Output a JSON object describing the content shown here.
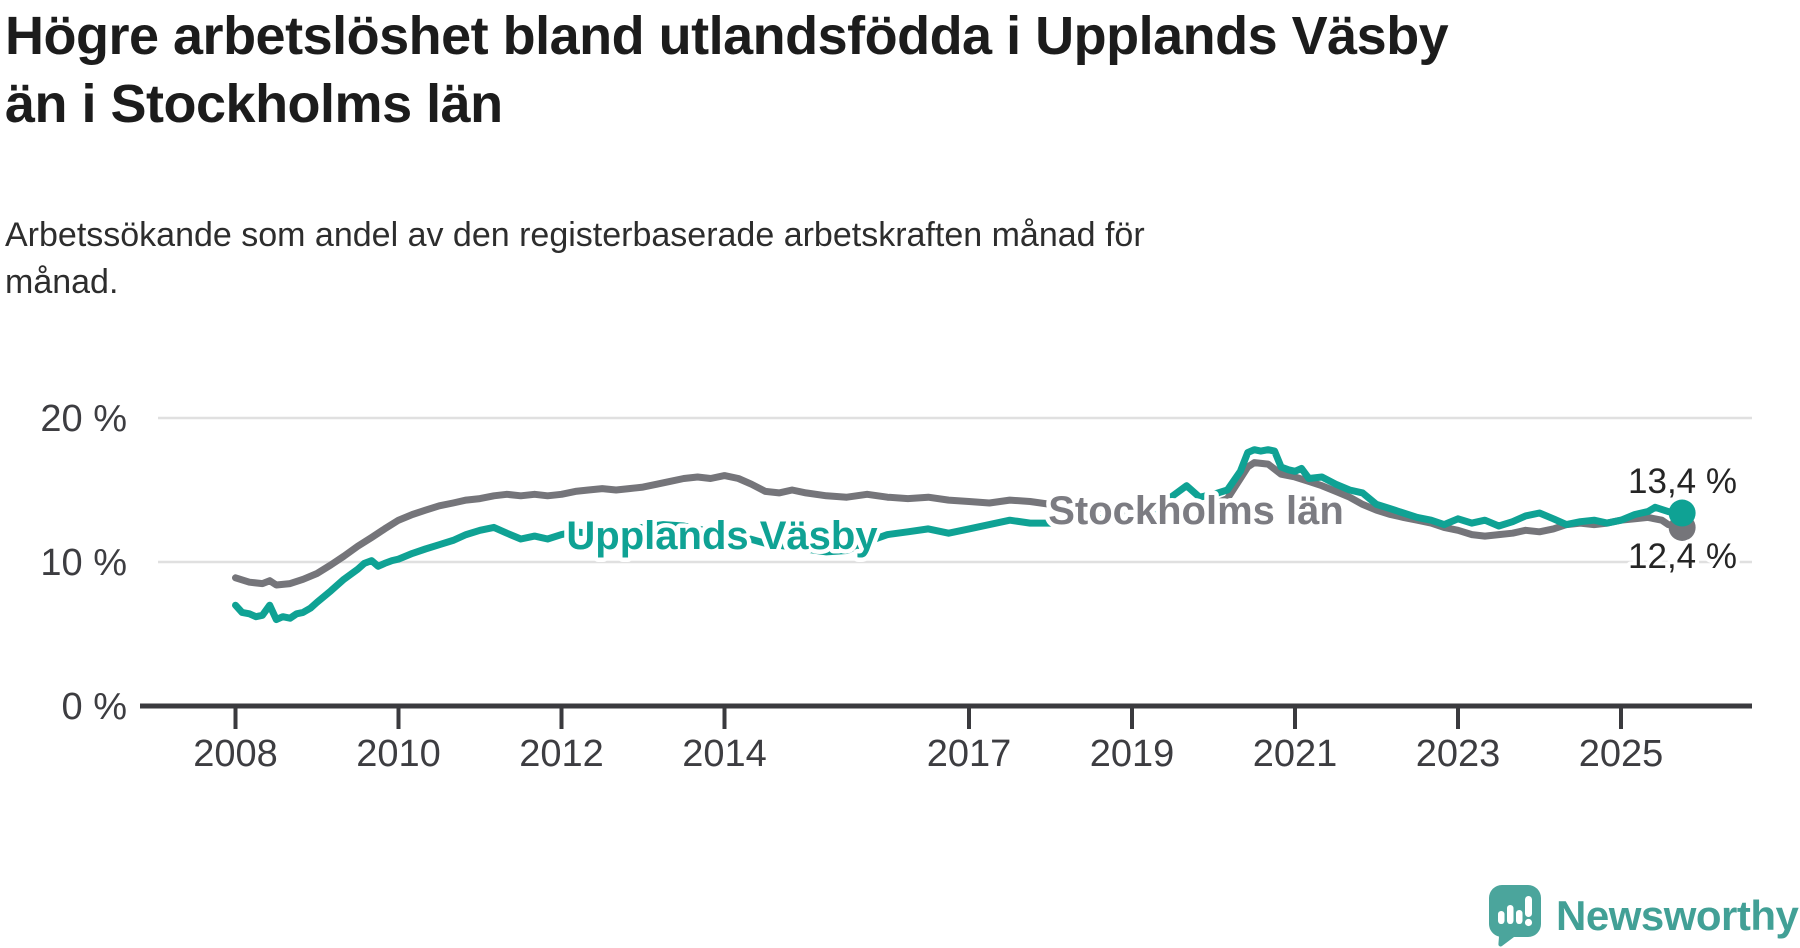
{
  "header": {
    "title_lines": [
      "Högre arbetslöshet bland utlandsfödda i Upplands Väsby",
      "än i Stockholms län"
    ],
    "subtitle_lines": [
      "Arbetssökande som andel av den registerbaserade arbetskraften månad för",
      "månad."
    ]
  },
  "chart_data": {
    "type": "line",
    "title": "Högre arbetslöshet bland utlandsfödda i Upplands Väsby än i Stockholms län",
    "subtitle": "Arbetssökande som andel av den registerbaserade arbetskraften månad för månad.",
    "xlabel": "",
    "ylabel": "",
    "ylim": [
      0,
      20
    ],
    "xlim": [
      2008,
      2026
    ],
    "grid": "horizontal",
    "legend_position": "inline-labels",
    "y_ticks": [
      {
        "value": 20,
        "label": "20 %"
      },
      {
        "value": 10,
        "label": "10 %"
      },
      {
        "value": 0,
        "label": "0 %"
      }
    ],
    "x_ticks": [
      {
        "value": 2008,
        "label": "2008"
      },
      {
        "value": 2010,
        "label": "2010"
      },
      {
        "value": 2012,
        "label": "2012"
      },
      {
        "value": 2014,
        "label": "2014"
      },
      {
        "value": 2017,
        "label": "2017"
      },
      {
        "value": 2019,
        "label": "2019"
      },
      {
        "value": 2021,
        "label": "2021"
      },
      {
        "value": 2023,
        "label": "2023"
      },
      {
        "value": 2025,
        "label": "2025"
      }
    ],
    "series": [
      {
        "name": "Upplands Väsby",
        "color": "#0fa294",
        "end_label": "13,4 %",
        "end_value": 13.4,
        "points": [
          [
            2008.0,
            7.0
          ],
          [
            2008.08,
            6.5
          ],
          [
            2008.17,
            6.4
          ],
          [
            2008.25,
            6.2
          ],
          [
            2008.33,
            6.3
          ],
          [
            2008.42,
            7.0
          ],
          [
            2008.5,
            6.0
          ],
          [
            2008.58,
            6.2
          ],
          [
            2008.67,
            6.1
          ],
          [
            2008.75,
            6.4
          ],
          [
            2008.83,
            6.5
          ],
          [
            2008.92,
            6.8
          ],
          [
            2009.0,
            7.2
          ],
          [
            2009.17,
            8.0
          ],
          [
            2009.33,
            8.8
          ],
          [
            2009.5,
            9.5
          ],
          [
            2009.58,
            9.9
          ],
          [
            2009.67,
            10.1
          ],
          [
            2009.75,
            9.7
          ],
          [
            2009.83,
            9.9
          ],
          [
            2009.92,
            10.1
          ],
          [
            2010.0,
            10.2
          ],
          [
            2010.17,
            10.6
          ],
          [
            2010.33,
            10.9
          ],
          [
            2010.5,
            11.2
          ],
          [
            2010.67,
            11.5
          ],
          [
            2010.83,
            11.9
          ],
          [
            2011.0,
            12.2
          ],
          [
            2011.17,
            12.4
          ],
          [
            2011.33,
            12.0
          ],
          [
            2011.5,
            11.6
          ],
          [
            2011.67,
            11.8
          ],
          [
            2011.83,
            11.6
          ],
          [
            2012.0,
            11.9
          ],
          [
            2012.17,
            12.1
          ],
          [
            2012.33,
            12.0
          ],
          [
            2012.5,
            12.2
          ],
          [
            2012.67,
            12.1
          ],
          [
            2012.83,
            12.3
          ],
          [
            2013.0,
            12.4
          ],
          [
            2013.25,
            12.6
          ],
          [
            2013.5,
            12.5
          ],
          [
            2013.75,
            12.2
          ],
          [
            2014.0,
            12.0
          ],
          [
            2014.25,
            11.7
          ],
          [
            2014.5,
            11.3
          ],
          [
            2014.75,
            11.1
          ],
          [
            2015.0,
            10.9
          ],
          [
            2015.25,
            10.7
          ],
          [
            2015.5,
            10.8
          ],
          [
            2015.75,
            11.4
          ],
          [
            2016.0,
            11.9
          ],
          [
            2016.25,
            12.1
          ],
          [
            2016.5,
            12.3
          ],
          [
            2016.75,
            12.0
          ],
          [
            2017.0,
            12.3
          ],
          [
            2017.25,
            12.6
          ],
          [
            2017.5,
            12.9
          ],
          [
            2017.75,
            12.7
          ],
          [
            2018.0,
            12.7
          ],
          [
            2018.25,
            12.9
          ],
          [
            2018.5,
            13.1
          ],
          [
            2018.75,
            12.9
          ],
          [
            2019.0,
            13.2
          ],
          [
            2019.25,
            13.6
          ],
          [
            2019.5,
            14.6
          ],
          [
            2019.67,
            15.3
          ],
          [
            2019.83,
            14.5
          ],
          [
            2020.0,
            14.7
          ],
          [
            2020.17,
            15.0
          ],
          [
            2020.33,
            16.3
          ],
          [
            2020.42,
            17.6
          ],
          [
            2020.5,
            17.8
          ],
          [
            2020.58,
            17.7
          ],
          [
            2020.67,
            17.8
          ],
          [
            2020.75,
            17.7
          ],
          [
            2020.83,
            16.6
          ],
          [
            2020.92,
            16.4
          ],
          [
            2021.0,
            16.3
          ],
          [
            2021.08,
            16.5
          ],
          [
            2021.17,
            15.8
          ],
          [
            2021.33,
            15.9
          ],
          [
            2021.5,
            15.4
          ],
          [
            2021.67,
            15.0
          ],
          [
            2021.83,
            14.8
          ],
          [
            2022.0,
            14.0
          ],
          [
            2022.17,
            13.7
          ],
          [
            2022.33,
            13.4
          ],
          [
            2022.5,
            13.1
          ],
          [
            2022.67,
            12.9
          ],
          [
            2022.83,
            12.6
          ],
          [
            2023.0,
            13.0
          ],
          [
            2023.17,
            12.7
          ],
          [
            2023.33,
            12.9
          ],
          [
            2023.5,
            12.5
          ],
          [
            2023.67,
            12.8
          ],
          [
            2023.83,
            13.2
          ],
          [
            2024.0,
            13.4
          ],
          [
            2024.17,
            13.0
          ],
          [
            2024.33,
            12.6
          ],
          [
            2024.5,
            12.8
          ],
          [
            2024.67,
            12.9
          ],
          [
            2024.83,
            12.7
          ],
          [
            2025.0,
            12.9
          ],
          [
            2025.17,
            13.3
          ],
          [
            2025.33,
            13.5
          ],
          [
            2025.42,
            13.8
          ],
          [
            2025.58,
            13.5
          ],
          [
            2025.75,
            13.4
          ]
        ]
      },
      {
        "name": "Stockholms län",
        "color": "#75757a",
        "label_color": "#7c7c82",
        "end_label": "12,4 %",
        "end_value": 12.4,
        "points": [
          [
            2008.0,
            8.9
          ],
          [
            2008.17,
            8.6
          ],
          [
            2008.33,
            8.5
          ],
          [
            2008.42,
            8.7
          ],
          [
            2008.5,
            8.4
          ],
          [
            2008.67,
            8.5
          ],
          [
            2008.83,
            8.8
          ],
          [
            2009.0,
            9.2
          ],
          [
            2009.17,
            9.8
          ],
          [
            2009.33,
            10.4
          ],
          [
            2009.5,
            11.1
          ],
          [
            2009.67,
            11.7
          ],
          [
            2009.83,
            12.3
          ],
          [
            2010.0,
            12.9
          ],
          [
            2010.17,
            13.3
          ],
          [
            2010.33,
            13.6
          ],
          [
            2010.5,
            13.9
          ],
          [
            2010.67,
            14.1
          ],
          [
            2010.83,
            14.3
          ],
          [
            2011.0,
            14.4
          ],
          [
            2011.17,
            14.6
          ],
          [
            2011.33,
            14.7
          ],
          [
            2011.5,
            14.6
          ],
          [
            2011.67,
            14.7
          ],
          [
            2011.83,
            14.6
          ],
          [
            2012.0,
            14.7
          ],
          [
            2012.17,
            14.9
          ],
          [
            2012.33,
            15.0
          ],
          [
            2012.5,
            15.1
          ],
          [
            2012.67,
            15.0
          ],
          [
            2012.83,
            15.1
          ],
          [
            2013.0,
            15.2
          ],
          [
            2013.17,
            15.4
          ],
          [
            2013.33,
            15.6
          ],
          [
            2013.5,
            15.8
          ],
          [
            2013.67,
            15.9
          ],
          [
            2013.83,
            15.8
          ],
          [
            2014.0,
            16.0
          ],
          [
            2014.17,
            15.8
          ],
          [
            2014.33,
            15.4
          ],
          [
            2014.5,
            14.9
          ],
          [
            2014.67,
            14.8
          ],
          [
            2014.83,
            15.0
          ],
          [
            2015.0,
            14.8
          ],
          [
            2015.25,
            14.6
          ],
          [
            2015.5,
            14.5
          ],
          [
            2015.75,
            14.7
          ],
          [
            2016.0,
            14.5
          ],
          [
            2016.25,
            14.4
          ],
          [
            2016.5,
            14.5
          ],
          [
            2016.75,
            14.3
          ],
          [
            2017.0,
            14.2
          ],
          [
            2017.25,
            14.1
          ],
          [
            2017.5,
            14.3
          ],
          [
            2017.75,
            14.2
          ],
          [
            2018.0,
            14.0
          ],
          [
            2018.25,
            13.9
          ],
          [
            2018.5,
            13.8
          ],
          [
            2018.75,
            13.7
          ],
          [
            2019.0,
            13.6
          ],
          [
            2019.25,
            13.7
          ],
          [
            2019.5,
            13.8
          ],
          [
            2019.75,
            13.9
          ],
          [
            2020.0,
            14.0
          ],
          [
            2020.17,
            14.4
          ],
          [
            2020.33,
            15.8
          ],
          [
            2020.42,
            16.6
          ],
          [
            2020.5,
            16.9
          ],
          [
            2020.67,
            16.8
          ],
          [
            2020.83,
            16.1
          ],
          [
            2021.0,
            15.9
          ],
          [
            2021.17,
            15.6
          ],
          [
            2021.33,
            15.3
          ],
          [
            2021.5,
            14.9
          ],
          [
            2021.67,
            14.5
          ],
          [
            2021.83,
            14.0
          ],
          [
            2022.0,
            13.6
          ],
          [
            2022.17,
            13.3
          ],
          [
            2022.33,
            13.1
          ],
          [
            2022.5,
            12.9
          ],
          [
            2022.67,
            12.7
          ],
          [
            2022.83,
            12.4
          ],
          [
            2023.0,
            12.2
          ],
          [
            2023.17,
            11.9
          ],
          [
            2023.33,
            11.8
          ],
          [
            2023.5,
            11.9
          ],
          [
            2023.67,
            12.0
          ],
          [
            2023.83,
            12.2
          ],
          [
            2024.0,
            12.1
          ],
          [
            2024.17,
            12.3
          ],
          [
            2024.33,
            12.6
          ],
          [
            2024.5,
            12.7
          ],
          [
            2024.67,
            12.6
          ],
          [
            2024.83,
            12.7
          ],
          [
            2025.0,
            12.9
          ],
          [
            2025.17,
            13.0
          ],
          [
            2025.33,
            13.1
          ],
          [
            2025.5,
            12.9
          ],
          [
            2025.58,
            12.6
          ],
          [
            2025.75,
            12.4
          ]
        ]
      }
    ]
  },
  "footer": {
    "brand": "Newsworthy",
    "brand_color": "#42a096",
    "icon_color": "#4ba59c"
  }
}
